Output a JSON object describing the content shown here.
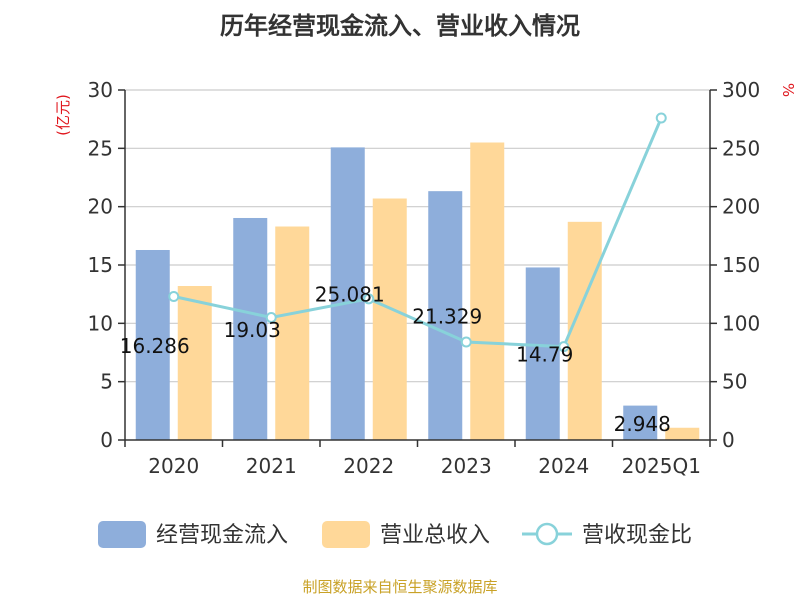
{
  "title": "历年经营现金流入、营业收入情况",
  "source": "制图数据来自恒生聚源数据库",
  "colors": {
    "series1": "#8eaedb",
    "series2": "#ffd899",
    "line": "#88d2da",
    "grid": "#cccccc",
    "axis": "#333333"
  },
  "chart_data": {
    "type": "bar",
    "categories": [
      "2020",
      "2021",
      "2022",
      "2023",
      "2024",
      "2025Q1"
    ],
    "y_left": {
      "unit": "(亿元)",
      "min": 0,
      "max": 30,
      "ticks": [
        0,
        5,
        10,
        15,
        20,
        25,
        30
      ]
    },
    "y_right": {
      "unit": "%",
      "min": 0,
      "max": 300,
      "ticks": [
        0,
        50,
        100,
        150,
        200,
        250,
        300
      ]
    },
    "grid": true,
    "legend_position": "bottom",
    "series": [
      {
        "name": "经营现金流入",
        "type": "bar",
        "axis": "left",
        "values": [
          16.286,
          19.03,
          25.081,
          21.329,
          14.79,
          2.948
        ],
        "labels": [
          "16.286",
          "19.03",
          "25.081",
          "21.329",
          "14.79",
          "2.948"
        ]
      },
      {
        "name": "营业总收入",
        "type": "bar",
        "axis": "left",
        "values": [
          13.2,
          18.3,
          20.7,
          25.5,
          18.7,
          1.05
        ]
      },
      {
        "name": "营收现金比",
        "type": "line",
        "axis": "right",
        "values": [
          123,
          105,
          121,
          84,
          80,
          276
        ]
      }
    ]
  }
}
